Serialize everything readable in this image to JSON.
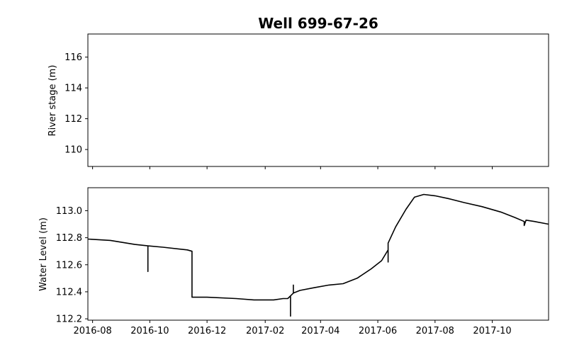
{
  "chart_data": [
    {
      "type": "line",
      "title": "Well 699-67-26",
      "xlabel": "",
      "ylabel": "River stage (m)",
      "xlim": [
        "2016-07-27",
        "2017-11-30"
      ],
      "ylim": [
        108.9,
        117.5
      ],
      "y_ticks": [
        110,
        112,
        114,
        116
      ],
      "y_tick_labels": [
        "110",
        "112",
        "114",
        "116"
      ],
      "x_ticks": [
        "2016-08-01",
        "2016-10-01",
        "2016-12-01",
        "2017-02-01",
        "2017-04-01",
        "2017-06-01",
        "2017-08-01",
        "2017-10-01"
      ],
      "x_tick_labels_shown": false,
      "grid": false,
      "series": []
    },
    {
      "type": "line",
      "title": "",
      "xlabel": "",
      "ylabel": "Water Level (m)",
      "xlim": [
        "2016-07-27",
        "2017-11-30"
      ],
      "ylim": [
        112.19,
        113.17
      ],
      "y_ticks": [
        112.2,
        112.4,
        112.6,
        112.8,
        113.0
      ],
      "y_tick_labels": [
        "112.2",
        "112.4",
        "112.6",
        "112.8",
        "113.0"
      ],
      "x_ticks": [
        "2016-08-01",
        "2016-10-01",
        "2016-12-01",
        "2017-02-01",
        "2017-04-01",
        "2017-06-01",
        "2017-08-01",
        "2017-10-01"
      ],
      "x_tick_labels": [
        "2016-08",
        "2016-10",
        "2016-12",
        "2017-02",
        "2017-04",
        "2017-06",
        "2017-08",
        "2017-10"
      ],
      "grid": false,
      "series": [
        {
          "color": "#000000",
          "x": [
            "2016-07-27",
            "2016-08-20",
            "2016-09-15",
            "2016-09-29",
            "2016-09-29",
            "2016-09-29",
            "2016-10-15",
            "2016-11-10",
            "2016-11-15",
            "2016-11-15",
            "2016-12-01",
            "2017-01-01",
            "2017-01-20",
            "2017-02-10",
            "2017-02-20",
            "2017-02-25",
            "2017-02-28",
            "2017-02-28",
            "2017-02-28",
            "2017-03-03",
            "2017-03-03",
            "2017-03-03",
            "2017-03-10",
            "2017-03-25",
            "2017-04-10",
            "2017-04-25",
            "2017-05-10",
            "2017-05-25",
            "2017-06-05",
            "2017-06-12",
            "2017-06-12",
            "2017-06-12",
            "2017-06-20",
            "2017-07-01",
            "2017-07-10",
            "2017-07-20",
            "2017-08-01",
            "2017-08-15",
            "2017-09-01",
            "2017-09-20",
            "2017-10-10",
            "2017-10-25",
            "2017-11-04",
            "2017-11-04",
            "2017-11-06",
            "2017-11-15",
            "2017-11-30"
          ],
          "y": [
            112.79,
            112.78,
            112.75,
            112.74,
            112.55,
            112.74,
            112.73,
            112.71,
            112.7,
            112.36,
            112.36,
            112.35,
            112.34,
            112.34,
            112.35,
            112.35,
            112.37,
            112.22,
            112.37,
            112.39,
            112.45,
            112.39,
            112.41,
            112.43,
            112.45,
            112.46,
            112.5,
            112.57,
            112.63,
            112.71,
            112.62,
            112.76,
            112.88,
            113.01,
            113.1,
            113.12,
            113.11,
            113.09,
            113.06,
            113.03,
            112.99,
            112.95,
            112.92,
            112.89,
            112.93,
            112.92,
            112.9
          ]
        }
      ]
    }
  ]
}
